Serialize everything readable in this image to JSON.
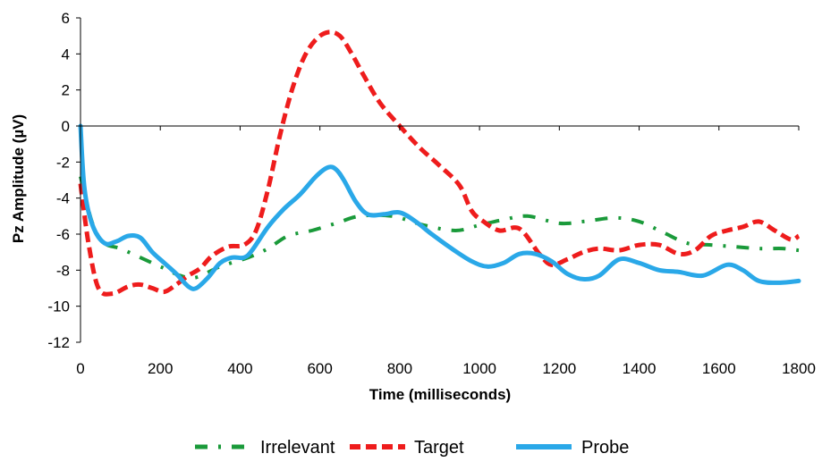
{
  "chart_data": {
    "type": "line",
    "title": "",
    "xlabel": "Time (milliseconds)",
    "ylabel": "Pz Amplitude (µV)",
    "xlim": [
      0,
      1800
    ],
    "ylim": [
      -12,
      6
    ],
    "xticks": [
      0,
      200,
      400,
      600,
      800,
      1000,
      1200,
      1400,
      1600,
      1800
    ],
    "yticks": [
      6,
      4,
      2,
      0,
      -2,
      -4,
      -6,
      -8,
      -10,
      -12
    ],
    "grid": false,
    "legend_position": "bottom",
    "series": [
      {
        "name": "Irrelevant",
        "color": "#1a9a3a",
        "dash": "dash-dot",
        "x": [
          0,
          30,
          60,
          100,
          150,
          200,
          250,
          290,
          350,
          420,
          470,
          520,
          580,
          640,
          700,
          780,
          860,
          940,
          1000,
          1060,
          1120,
          1200,
          1260,
          1340,
          1400,
          1460,
          1520,
          1580,
          1640,
          1700,
          1760,
          1800
        ],
        "y": [
          -2.8,
          -5.4,
          -6.5,
          -6.8,
          -7.3,
          -7.8,
          -8.3,
          -8.4,
          -7.8,
          -7.3,
          -6.8,
          -6.1,
          -5.8,
          -5.4,
          -5.0,
          -5.0,
          -5.5,
          -5.8,
          -5.5,
          -5.2,
          -5.0,
          -5.4,
          -5.3,
          -5.1,
          -5.3,
          -5.9,
          -6.5,
          -6.6,
          -6.7,
          -6.8,
          -6.8,
          -6.9
        ]
      },
      {
        "name": "Target",
        "color": "#ee1c1c",
        "dash": "dashed",
        "x": [
          0,
          20,
          45,
          80,
          120,
          150,
          180,
          210,
          240,
          270,
          300,
          330,
          370,
          410,
          440,
          470,
          500,
          530,
          560,
          590,
          620,
          650,
          680,
          710,
          750,
          800,
          850,
          900,
          950,
          980,
          1010,
          1050,
          1100,
          1150,
          1180,
          1220,
          1260,
          1300,
          1350,
          1400,
          1450,
          1500,
          1540,
          1580,
          1620,
          1660,
          1700,
          1740,
          1780,
          1800
        ],
        "y": [
          -3.2,
          -6.5,
          -9.0,
          -9.3,
          -8.9,
          -8.8,
          -9.0,
          -9.2,
          -8.8,
          -8.3,
          -7.9,
          -7.2,
          -6.7,
          -6.6,
          -5.8,
          -3.5,
          -0.5,
          2.0,
          3.8,
          4.8,
          5.2,
          5.0,
          4.0,
          2.8,
          1.3,
          0.0,
          -1.2,
          -2.2,
          -3.3,
          -4.7,
          -5.3,
          -5.8,
          -5.7,
          -7.1,
          -7.7,
          -7.4,
          -7.0,
          -6.8,
          -6.9,
          -6.6,
          -6.6,
          -7.1,
          -6.9,
          -6.1,
          -5.8,
          -5.6,
          -5.3,
          -5.8,
          -6.3,
          -6.1
        ]
      },
      {
        "name": "Probe",
        "color": "#2aa8e8",
        "dash": "solid",
        "x": [
          0,
          10,
          30,
          60,
          90,
          120,
          150,
          180,
          210,
          240,
          270,
          290,
          320,
          350,
          380,
          410,
          430,
          470,
          510,
          550,
          590,
          620,
          640,
          660,
          690,
          720,
          760,
          800,
          840,
          880,
          930,
          980,
          1020,
          1060,
          1100,
          1140,
          1180,
          1220,
          1260,
          1300,
          1350,
          1400,
          1450,
          1500,
          1560,
          1620,
          1660,
          1700,
          1750,
          1800
        ],
        "y": [
          0.0,
          -3.5,
          -5.5,
          -6.5,
          -6.4,
          -6.1,
          -6.2,
          -7.0,
          -7.6,
          -8.2,
          -8.9,
          -9.0,
          -8.4,
          -7.6,
          -7.3,
          -7.3,
          -6.9,
          -5.6,
          -4.6,
          -3.8,
          -2.8,
          -2.3,
          -2.4,
          -3.0,
          -4.2,
          -4.9,
          -4.9,
          -4.8,
          -5.3,
          -6.0,
          -6.8,
          -7.5,
          -7.8,
          -7.6,
          -7.1,
          -7.1,
          -7.5,
          -8.2,
          -8.5,
          -8.3,
          -7.4,
          -7.6,
          -8.0,
          -8.1,
          -8.3,
          -7.7,
          -8.0,
          -8.6,
          -8.7,
          -8.6
        ]
      }
    ]
  }
}
